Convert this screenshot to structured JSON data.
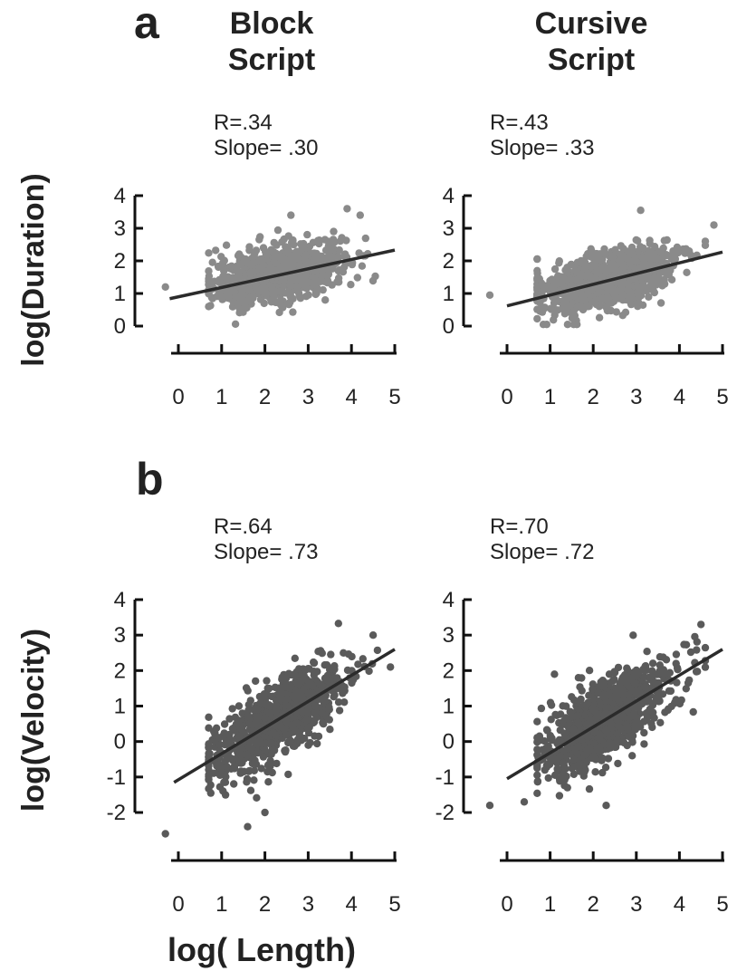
{
  "panel_labels": {
    "a": "a",
    "b": "b"
  },
  "column_titles": {
    "block": [
      "Block",
      "Script"
    ],
    "cursive": [
      "Cursive",
      "Script"
    ]
  },
  "stats": {
    "a_block": {
      "r": "R=.34",
      "slope": "Slope= .30"
    },
    "a_cursive": {
      "r": "R=.43",
      "slope": "Slope= .33"
    },
    "b_block": {
      "r": "R=.64",
      "slope": "Slope= .73"
    },
    "b_cursive": {
      "r": "R=.70",
      "slope": "Slope= .72"
    }
  },
  "y_labels": {
    "a": "log(Duration)",
    "b": "log(Velocity)"
  },
  "x_label": "log( Length)",
  "colors": {
    "points_a": "#8a8a8a",
    "points_b": "#5a5a5a",
    "fit_line": "#2b2b2b",
    "axis": "#111111"
  },
  "chart_data": [
    {
      "type": "scatter",
      "panel": "a",
      "column": "Block Script",
      "ylabel": "log(Duration)",
      "xlabel": "log( Length)",
      "xlim": [
        0,
        5
      ],
      "ylim": [
        0,
        4
      ],
      "xticks": [
        0,
        1,
        2,
        3,
        4,
        5
      ],
      "yticks": [
        0,
        1,
        2,
        3,
        4
      ],
      "r": 0.34,
      "slope": 0.3,
      "fit_line": {
        "x": [
          -0.2,
          5.0
        ],
        "y": [
          0.84,
          2.33
        ]
      },
      "cloud": {
        "x_mean": 2.3,
        "x_sd": 0.75,
        "y_intercept": 0.92,
        "resid_sd": 0.42,
        "n": 900
      },
      "outliers": [
        [
          -0.3,
          1.2
        ],
        [
          4.2,
          3.4
        ],
        [
          3.9,
          3.6
        ],
        [
          2.6,
          3.4
        ]
      ]
    },
    {
      "type": "scatter",
      "panel": "a",
      "column": "Cursive Script",
      "ylabel": "log(Duration)",
      "xlabel": "log( Length)",
      "xlim": [
        0,
        5
      ],
      "ylim": [
        0,
        4
      ],
      "xticks": [
        0,
        1,
        2,
        3,
        4,
        5
      ],
      "yticks": [
        0,
        1,
        2,
        3,
        4
      ],
      "r": 0.43,
      "slope": 0.33,
      "fit_line": {
        "x": [
          0.0,
          5.0
        ],
        "y": [
          0.62,
          2.27
        ]
      },
      "cloud": {
        "x_mean": 2.3,
        "x_sd": 0.8,
        "y_intercept": 0.62,
        "resid_sd": 0.42,
        "n": 900
      },
      "outliers": [
        [
          -0.4,
          0.95
        ],
        [
          4.8,
          3.1
        ],
        [
          3.1,
          3.55
        ],
        [
          4.6,
          2.6
        ]
      ]
    },
    {
      "type": "scatter",
      "panel": "b",
      "column": "Block Script",
      "ylabel": "log(Velocity)",
      "xlabel": "log( Length)",
      "xlim": [
        0,
        5
      ],
      "ylim": [
        -2,
        4
      ],
      "xticks": [
        0,
        1,
        2,
        3,
        4,
        5
      ],
      "yticks": [
        -2,
        -1,
        0,
        1,
        2,
        3,
        4
      ],
      "r": 0.64,
      "slope": 0.73,
      "fit_line": {
        "x": [
          -0.1,
          5.0
        ],
        "y": [
          -1.15,
          2.6
        ]
      },
      "cloud": {
        "x_mean": 2.3,
        "x_sd": 0.75,
        "y_intercept": -1.1,
        "resid_sd": 0.55,
        "n": 900
      },
      "outliers": [
        [
          -0.3,
          -2.6
        ],
        [
          1.6,
          -2.4
        ],
        [
          2.0,
          -2.0
        ],
        [
          4.5,
          3.0
        ],
        [
          4.9,
          2.1
        ]
      ]
    },
    {
      "type": "scatter",
      "panel": "b",
      "column": "Cursive Script",
      "ylabel": "log(Velocity)",
      "xlabel": "log( Length)",
      "xlim": [
        0,
        5
      ],
      "ylim": [
        -2,
        4
      ],
      "xticks": [
        0,
        1,
        2,
        3,
        4,
        5
      ],
      "yticks": [
        -2,
        -1,
        0,
        1,
        2,
        3,
        4
      ],
      "r": 0.7,
      "slope": 0.72,
      "fit_line": {
        "x": [
          0.0,
          5.0
        ],
        "y": [
          -1.05,
          2.6
        ]
      },
      "cloud": {
        "x_mean": 2.3,
        "x_sd": 0.8,
        "y_intercept": -1.05,
        "resid_sd": 0.55,
        "n": 900
      },
      "outliers": [
        [
          -0.4,
          -1.8
        ],
        [
          1.1,
          1.9
        ],
        [
          4.5,
          3.3
        ],
        [
          2.3,
          -1.8
        ],
        [
          0.4,
          -1.7
        ]
      ]
    }
  ]
}
